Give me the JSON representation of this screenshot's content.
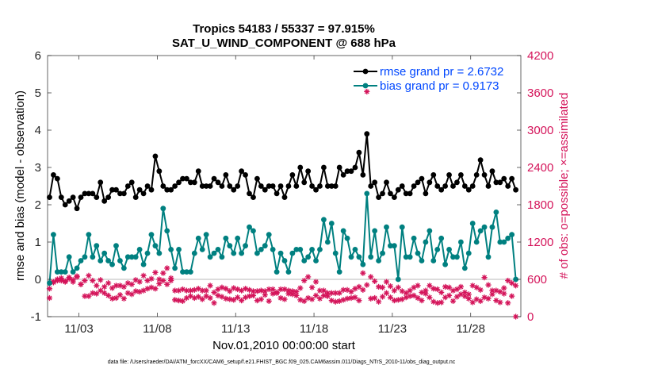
{
  "colors": {
    "rmse": "#000000",
    "bias": "#008080",
    "obs": "#d4145a",
    "legend_text": "#0047ff",
    "zero_line": "#c8c8c8"
  },
  "chart_data": {
    "type": "line",
    "title": [
      "Tropics 54183 / 55337 = 97.915%",
      "SAT_U_WIND_COMPONENT @ 688 hPa"
    ],
    "xlabel": "Nov.01,2010 00:00:00 start",
    "ylabel": "rmse and bias (model - observation)",
    "ylabel_right": "# of obs: o=possible; ×=assimilated",
    "footnote": "data file: /Users/raeder/DAI/ATM_forcXX/CAM6_setup/f.e21.FHIST_BGC.f09_025.CAM6assim.011/Diags_NTrS_2010-11/obs_diag_output.nc",
    "xlim": [
      1.0,
      31.2
    ],
    "ylim": [
      -1,
      6
    ],
    "ylim_right": [
      0,
      4200
    ],
    "x_ticks": [
      3,
      8,
      13,
      18,
      23,
      28
    ],
    "x_tick_labels": [
      "11/03",
      "11/08",
      "11/13",
      "11/18",
      "11/23",
      "11/28"
    ],
    "y_ticks": [
      -1,
      0,
      1,
      2,
      3,
      4,
      5,
      6
    ],
    "y_tick_labels": [
      "-1",
      "0",
      "1",
      "2",
      "3",
      "4",
      "5",
      "6"
    ],
    "y_right_ticks": [
      0,
      600,
      1200,
      1800,
      2400,
      3000,
      3600,
      4200
    ],
    "y_right_tick_labels": [
      "0",
      "600",
      "1200",
      "1800",
      "2400",
      "3000",
      "3600",
      "4200"
    ],
    "legend": [
      "rmse grand pr = 2.6732",
      "bias grand pr = 0.9173"
    ],
    "legend_position": "top-right",
    "x": [
      1.125,
      1.375,
      1.625,
      1.875,
      2.125,
      2.375,
      2.625,
      2.875,
      3.125,
      3.375,
      3.625,
      3.875,
      4.125,
      4.375,
      4.625,
      4.875,
      5.125,
      5.375,
      5.625,
      5.875,
      6.125,
      6.375,
      6.625,
      6.875,
      7.125,
      7.375,
      7.625,
      7.875,
      8.125,
      8.375,
      8.625,
      8.875,
      9.125,
      9.375,
      9.625,
      9.875,
      10.125,
      10.375,
      10.625,
      10.875,
      11.125,
      11.375,
      11.625,
      11.875,
      12.125,
      12.375,
      12.625,
      12.875,
      13.125,
      13.375,
      13.625,
      13.875,
      14.125,
      14.375,
      14.625,
      14.875,
      15.125,
      15.375,
      15.625,
      15.875,
      16.125,
      16.375,
      16.625,
      16.875,
      17.125,
      17.375,
      17.625,
      17.875,
      18.125,
      18.375,
      18.625,
      18.875,
      19.125,
      19.375,
      19.625,
      19.875,
      20.125,
      20.375,
      20.625,
      20.875,
      21.125,
      21.375,
      21.625,
      21.875,
      22.125,
      22.375,
      22.625,
      22.875,
      23.125,
      23.375,
      23.625,
      23.875,
      24.125,
      24.375,
      24.625,
      24.875,
      25.125,
      25.375,
      25.625,
      25.875,
      26.125,
      26.375,
      26.625,
      26.875,
      27.125,
      27.375,
      27.625,
      27.875,
      28.125,
      28.375,
      28.625,
      28.875,
      29.125,
      29.375,
      29.625,
      29.875,
      30.125,
      30.375,
      30.625,
      30.875
    ],
    "series": [
      {
        "name": "rmse",
        "axis": "left",
        "values": [
          2.2,
          2.8,
          2.7,
          2.2,
          2.0,
          2.1,
          2.2,
          1.9,
          2.2,
          2.3,
          2.3,
          2.3,
          2.2,
          2.6,
          2.1,
          2.2,
          2.4,
          2.4,
          2.3,
          2.3,
          2.5,
          2.6,
          2.2,
          2.4,
          2.3,
          2.5,
          2.4,
          3.3,
          2.9,
          2.5,
          2.4,
          2.4,
          2.5,
          2.6,
          2.7,
          2.7,
          2.6,
          2.6,
          2.9,
          2.5,
          2.5,
          2.5,
          2.7,
          2.6,
          2.5,
          2.8,
          2.5,
          2.4,
          2.5,
          2.9,
          2.8,
          2.3,
          2.2,
          2.7,
          2.5,
          2.4,
          2.5,
          2.5,
          2.3,
          2.5,
          2.2,
          2.5,
          2.8,
          2.5,
          3.0,
          2.6,
          2.9,
          2.5,
          2.4,
          2.5,
          3.0,
          2.5,
          2.5,
          2.5,
          3.0,
          2.8,
          2.9,
          2.9,
          3.0,
          3.4,
          2.8,
          3.9,
          2.5,
          2.6,
          2.2,
          2.3,
          2.6,
          2.3,
          2.2,
          2.4,
          2.5,
          2.3,
          2.3,
          2.5,
          2.6,
          2.7,
          2.3,
          2.6,
          2.8,
          2.5,
          2.4,
          2.5,
          2.8,
          2.5,
          2.6,
          2.8,
          2.5,
          2.4,
          2.5,
          2.8,
          3.2,
          2.8,
          2.5,
          2.9,
          2.6,
          2.6,
          2.7,
          2.5,
          2.7,
          2.4
        ]
      },
      {
        "name": "bias",
        "axis": "left",
        "values": [
          -0.1,
          1.2,
          0.2,
          0.2,
          0.2,
          0.6,
          0.2,
          0.3,
          0.5,
          0.6,
          1.2,
          0.6,
          0.9,
          0.5,
          0.7,
          0.5,
          0.4,
          0.9,
          0.5,
          0.3,
          0.6,
          0.6,
          0.6,
          0.8,
          0.4,
          0.7,
          1.2,
          0.9,
          0.7,
          1.9,
          1.3,
          0.8,
          0.3,
          0.8,
          0.2,
          0.2,
          0.2,
          0.7,
          1.1,
          0.8,
          1.2,
          0.6,
          0.7,
          0.8,
          0.6,
          1.1,
          0.9,
          0.7,
          1.1,
          0.7,
          0.9,
          1.4,
          1.3,
          0.7,
          0.8,
          0.9,
          1.2,
          0.8,
          0.2,
          0.7,
          0.5,
          0.2,
          0.7,
          0.8,
          0.8,
          0.5,
          0.6,
          0.8,
          0.5,
          0.8,
          1.6,
          1.0,
          1.5,
          0.7,
          0.2,
          1.3,
          1.1,
          0.6,
          0.8,
          0.6,
          0.4,
          2.3,
          0.6,
          1.3,
          0.5,
          0.7,
          1.4,
          0.9,
          0.9,
          0.0,
          1.4,
          0.6,
          0.6,
          1.1,
          0.7,
          0.5,
          1.0,
          1.3,
          0.5,
          0.8,
          1.1,
          0.4,
          0.8,
          0.6,
          0.6,
          1.0,
          0.3,
          0.7,
          1.5,
          1.0,
          1.3,
          1.4,
          0.6,
          1.4,
          1.8,
          1.0,
          1.0,
          1.1,
          1.2,
          0.0
        ]
      },
      {
        "name": "obs possible",
        "axis": "right",
        "values": [
          450,
          560,
          580,
          580,
          560,
          610,
          560,
          640,
          520,
          580,
          660,
          580,
          500,
          590,
          480,
          540,
          460,
          500,
          500,
          480,
          540,
          520,
          590,
          560,
          660,
          580,
          610,
          710,
          600,
          700,
          780,
          620,
          420,
          420,
          440,
          420,
          420,
          430,
          450,
          420,
          420,
          500,
          390,
          440,
          470,
          450,
          410,
          460,
          440,
          420,
          450,
          430,
          410,
          410,
          420,
          410,
          440,
          440,
          380,
          440,
          440,
          370,
          410,
          400,
          460,
          580,
          640,
          470,
          560,
          420,
          420,
          380,
          380,
          380,
          380,
          430,
          430,
          400,
          450,
          480,
          700,
          510,
          640,
          570,
          480,
          470,
          560,
          490,
          420,
          470,
          410,
          380,
          420,
          470,
          500,
          390,
          420,
          500,
          450,
          440,
          390,
          480,
          470,
          420,
          440,
          480,
          390,
          360,
          500,
          470,
          430,
          630,
          510,
          420,
          420,
          400,
          460,
          580,
          540,
          500
        ]
      },
      {
        "name": "obs assimilated",
        "axis": "right",
        "values": [
          300,
          550,
          600,
          620,
          570,
          630,
          590,
          650,
          520,
          330,
          330,
          380,
          370,
          420,
          380,
          340,
          290,
          300,
          350,
          290,
          380,
          360,
          410,
          400,
          420,
          450,
          470,
          450,
          530,
          580,
          520,
          580,
          270,
          260,
          250,
          300,
          330,
          300,
          320,
          280,
          330,
          300,
          220,
          340,
          320,
          290,
          280,
          270,
          310,
          260,
          310,
          330,
          340,
          260,
          280,
          350,
          250,
          370,
          390,
          300,
          280,
          420,
          360,
          340,
          270,
          250,
          300,
          280,
          340,
          290,
          340,
          330,
          260,
          240,
          250,
          270,
          290,
          300,
          310,
          260,
          430,
          3620,
          290,
          300,
          240,
          320,
          380,
          310,
          260,
          270,
          280,
          310,
          330,
          340,
          300,
          260,
          370,
          310,
          240,
          220,
          230,
          310,
          340,
          250,
          320,
          360,
          330,
          290,
          230,
          280,
          250,
          310,
          290,
          360,
          260,
          230,
          370,
          220,
          330,
          0
        ]
      }
    ]
  }
}
